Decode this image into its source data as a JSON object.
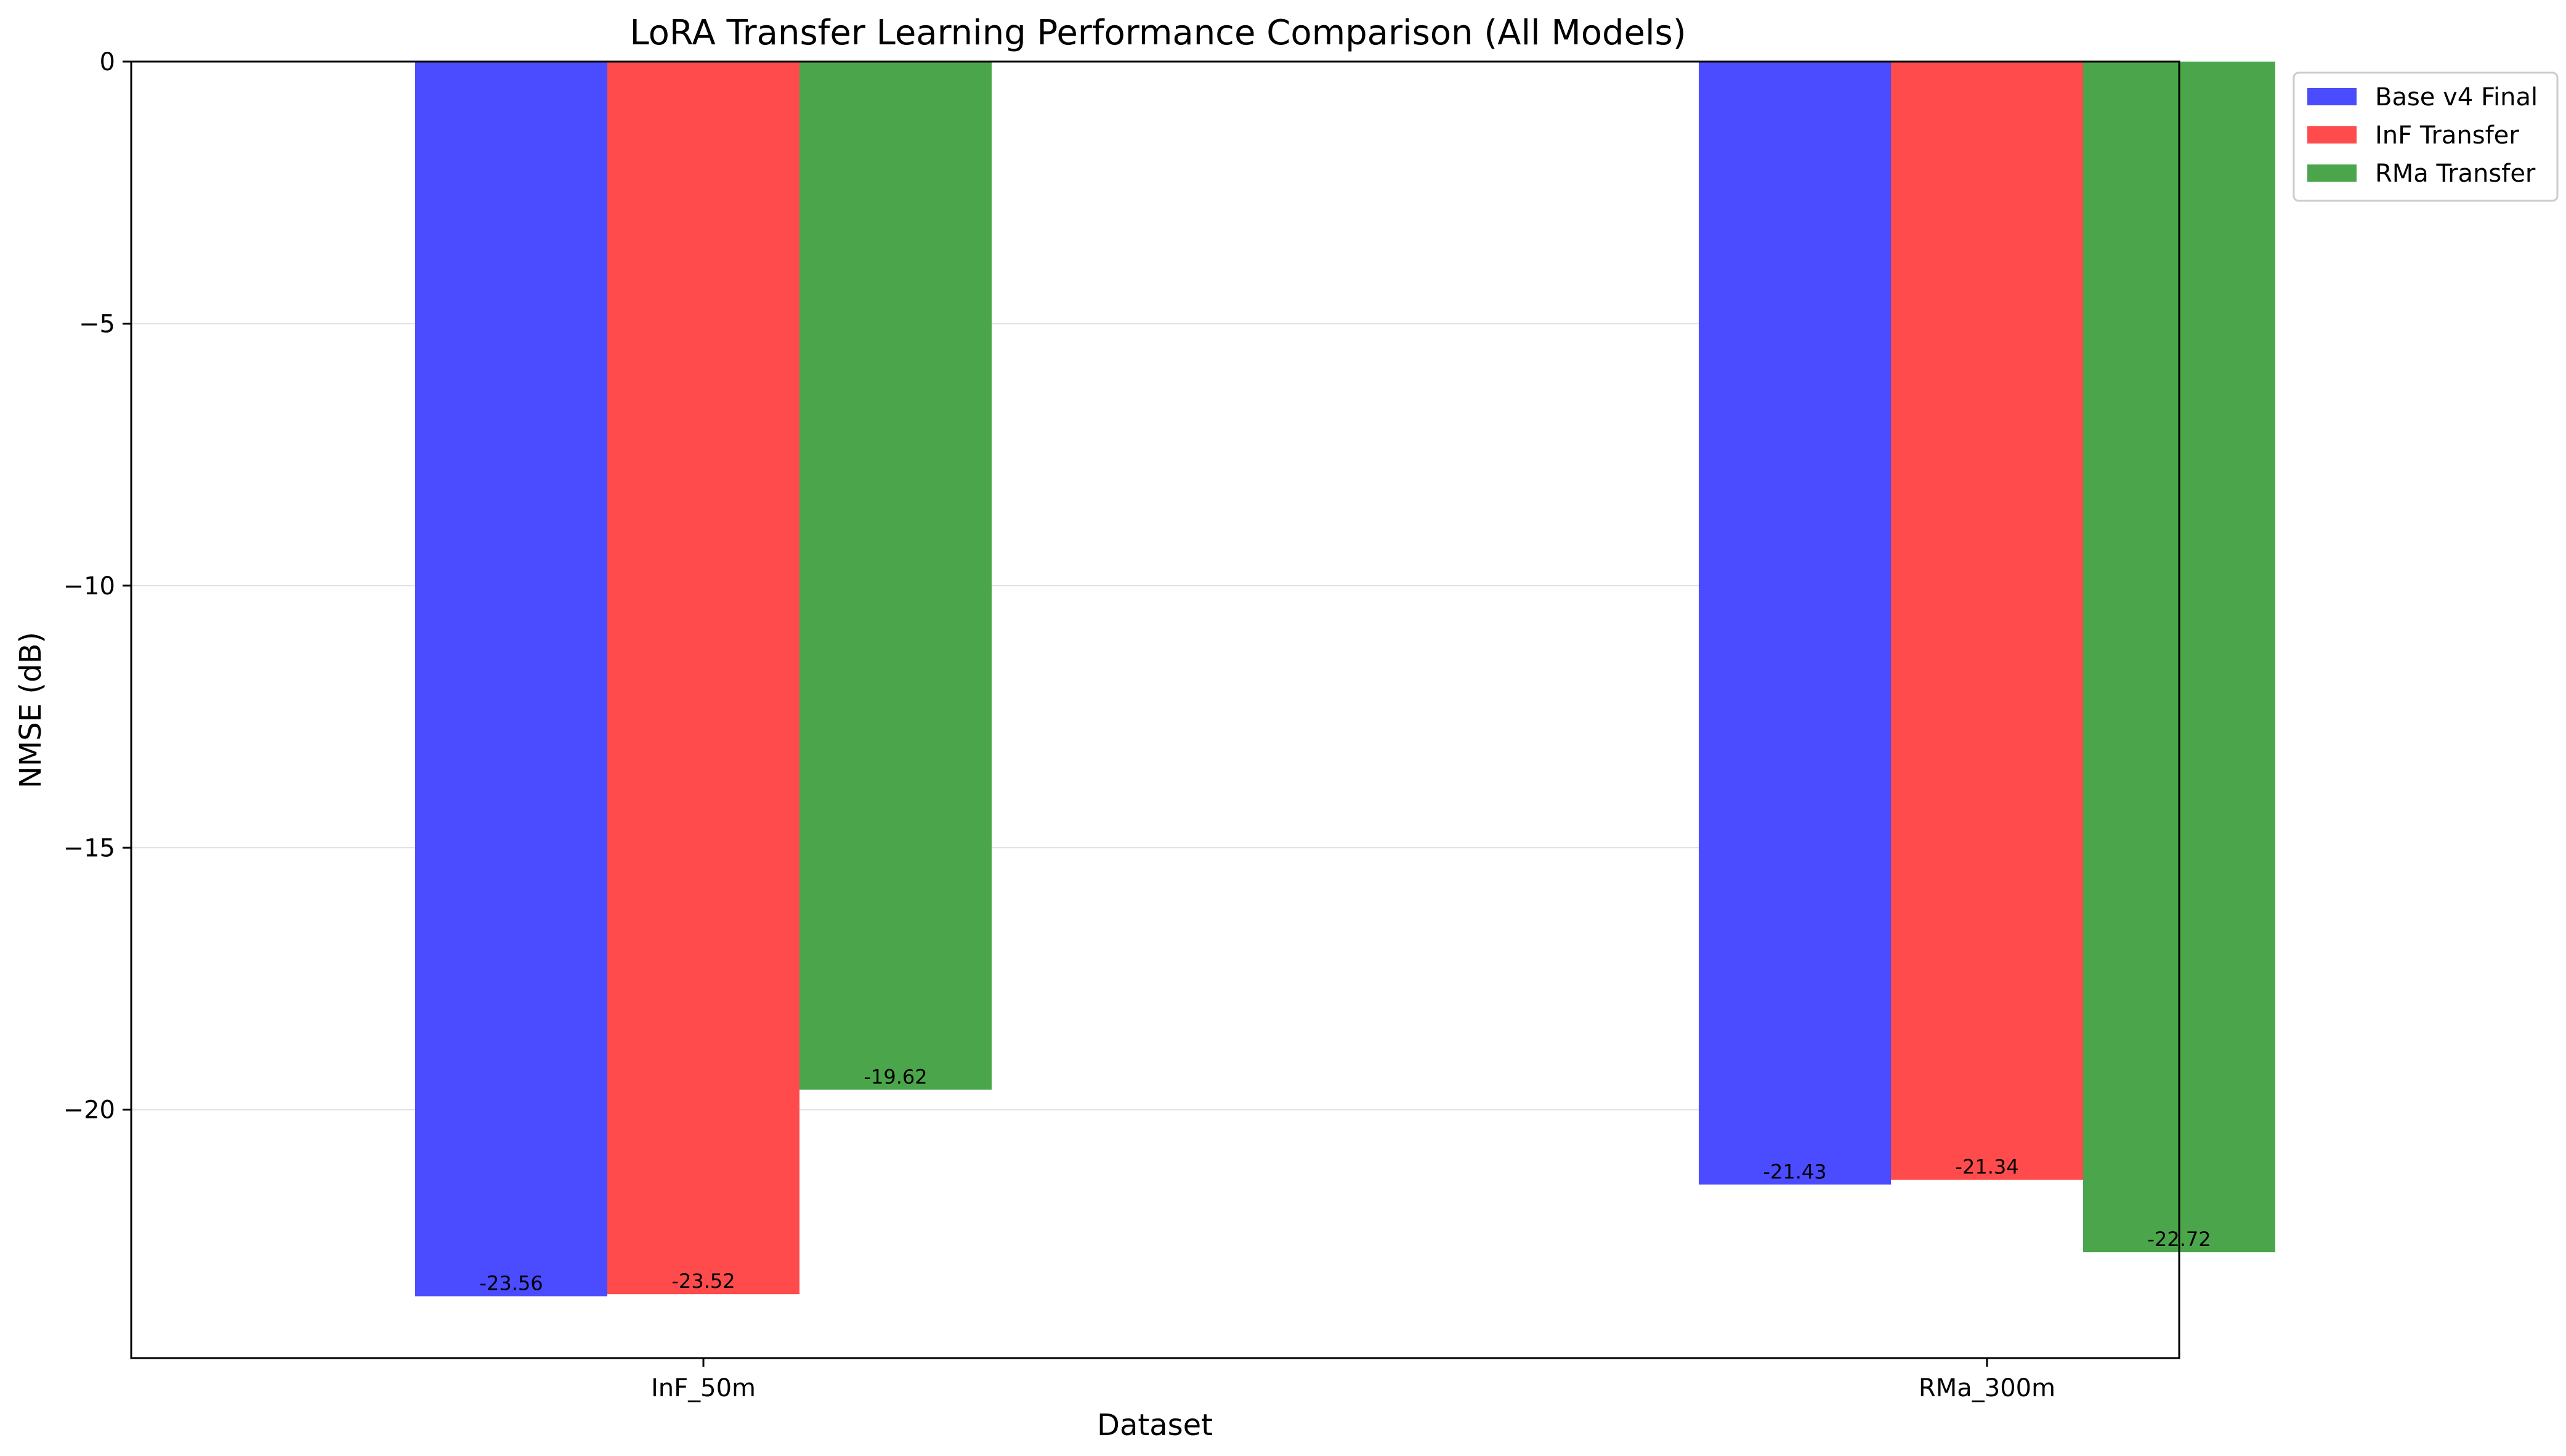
{
  "chart_data": {
    "type": "bar",
    "title": "LoRA Transfer Learning Performance Comparison (All Models)",
    "xlabel": "Dataset",
    "ylabel": "NMSE (dB)",
    "categories": [
      "InF_50m",
      "RMa_300m"
    ],
    "series": [
      {
        "name": "Base v4 Final",
        "color": "#4b4bff",
        "values": [
          -23.56,
          -21.43
        ],
        "labels": [
          "-23.56",
          "-21.43"
        ]
      },
      {
        "name": "InF Transfer",
        "color": "#ff4b4b",
        "values": [
          -23.52,
          -21.34
        ],
        "labels": [
          "-23.52",
          "-21.34"
        ]
      },
      {
        "name": "RMa Transfer",
        "color": "#4ba64b",
        "values": [
          -19.62,
          -22.72
        ],
        "labels": [
          "-19.62",
          "-22.72"
        ]
      }
    ],
    "ylim": [
      -24.74,
      0
    ],
    "yticks": [
      0,
      -5,
      -10,
      -15,
      -20
    ],
    "ytick_labels": [
      "0",
      "−5",
      "−10",
      "−15",
      "−20"
    ],
    "grid": true,
    "legend_position": "outside-top-right"
  }
}
